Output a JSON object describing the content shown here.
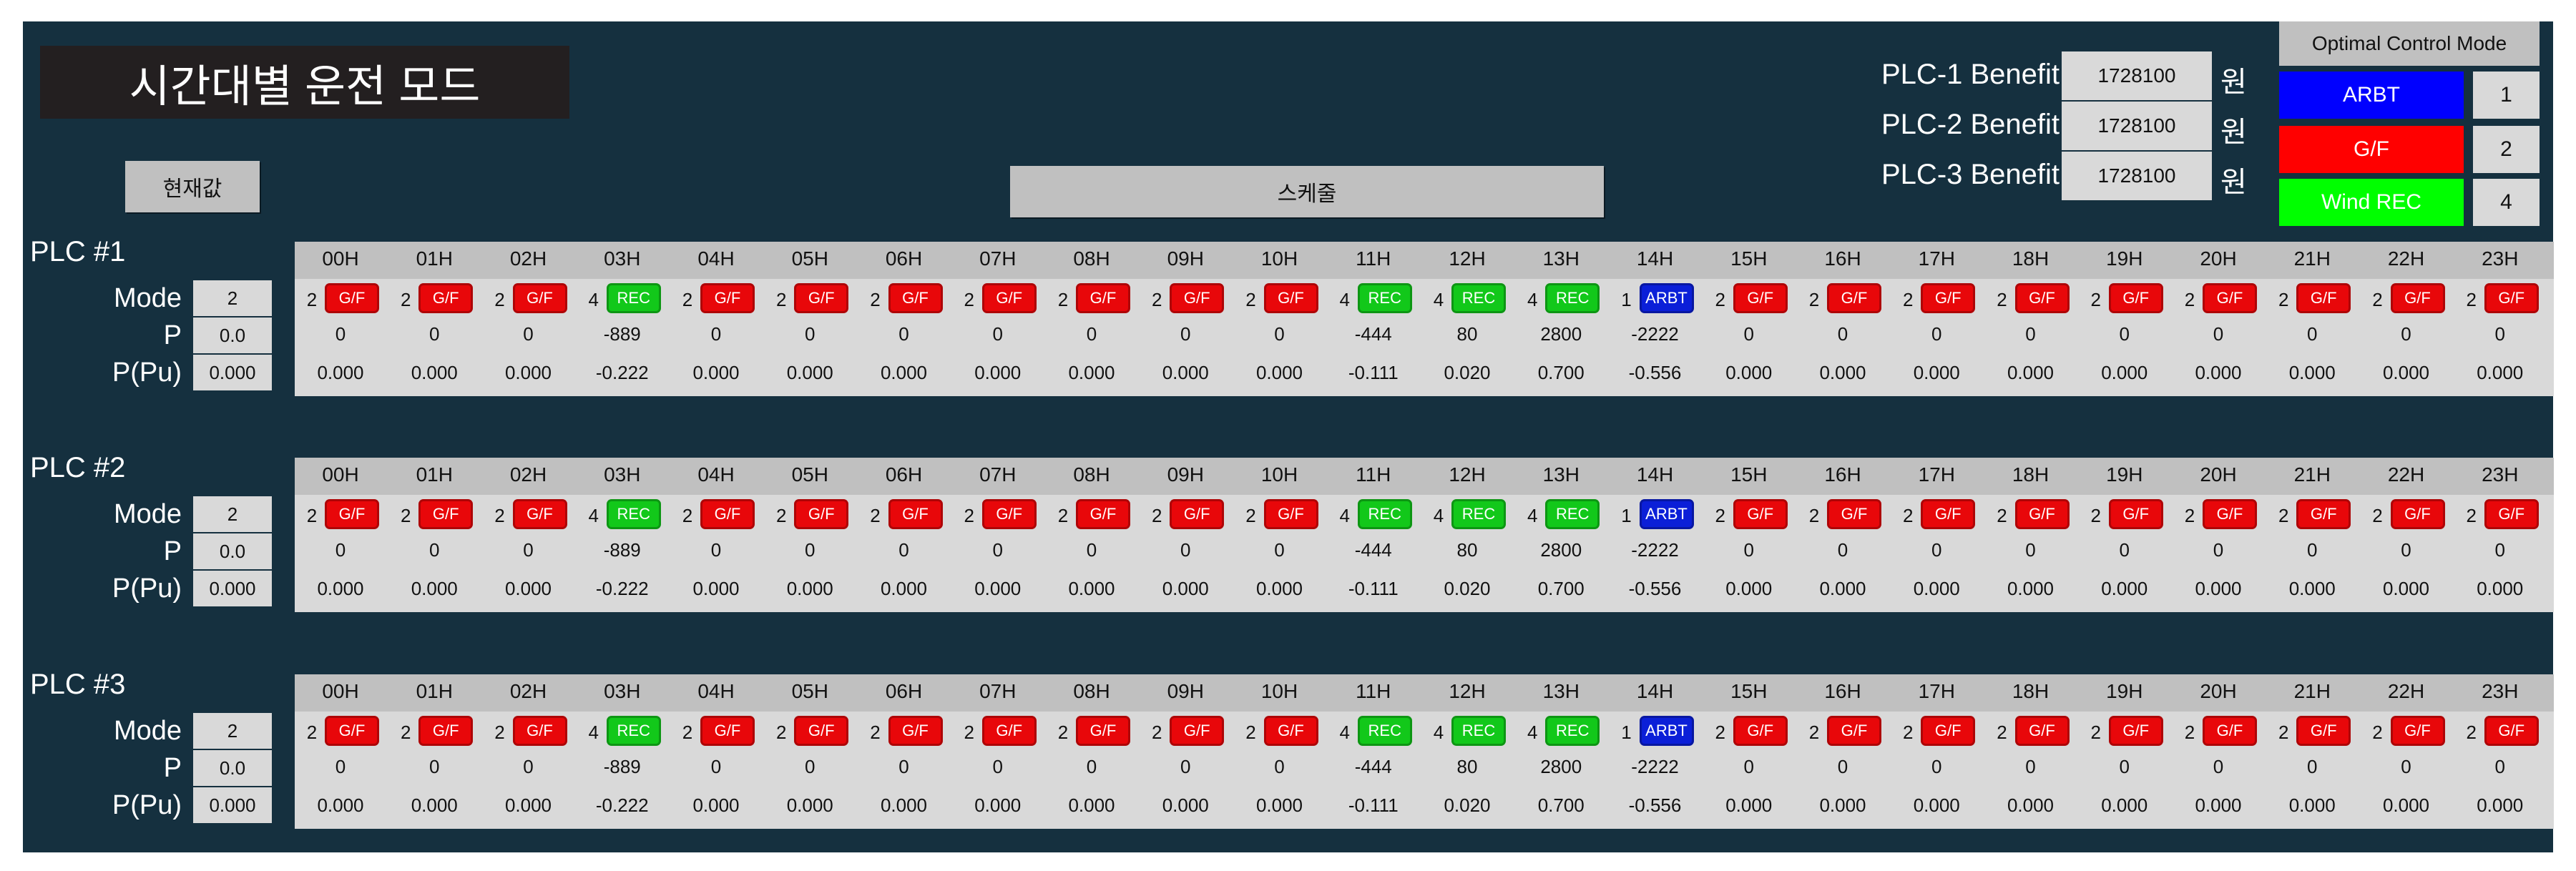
{
  "title": "시간대별 운전 모드",
  "current_label": "현재값",
  "schedule_label": "스케줄",
  "benefits": [
    {
      "label": "PLC-1 Benefit",
      "value": "1728100",
      "unit": "원"
    },
    {
      "label": "PLC-2 Benefit",
      "value": "1728100",
      "unit": "원"
    },
    {
      "label": "PLC-3 Benefit",
      "value": "1728100",
      "unit": "원"
    }
  ],
  "optimal_mode": {
    "title": "Optimal Control Mode",
    "modes": [
      {
        "label": "ARBT",
        "num": "1",
        "color": "#0000ff"
      },
      {
        "label": "G/F",
        "num": "2",
        "color": "#ff0000"
      },
      {
        "label": "Wind REC",
        "num": "4",
        "color": "#00ff00"
      }
    ]
  },
  "colors": {
    "ARBT": "#0b1fd8",
    "G/F": "#e8070a",
    "REC": "#12c81a",
    "ARBT_PLC1": "#0b1fd8"
  },
  "row_labels": {
    "mode": "Mode",
    "p": "P",
    "ppu": "P(Pu)"
  },
  "hours": [
    "00H",
    "01H",
    "02H",
    "03H",
    "04H",
    "05H",
    "06H",
    "07H",
    "08H",
    "09H",
    "10H",
    "11H",
    "12H",
    "13H",
    "14H",
    "15H",
    "16H",
    "17H",
    "18H",
    "19H",
    "20H",
    "21H",
    "22H",
    "23H"
  ],
  "plcs": [
    {
      "name": "PLC #1",
      "current": {
        "mode": "2",
        "p": "0.0",
        "ppu": "0.000"
      },
      "mode_nums": [
        "2",
        "2",
        "2",
        "4",
        "2",
        "2",
        "2",
        "2",
        "2",
        "2",
        "2",
        "4",
        "4",
        "4",
        "1",
        "2",
        "2",
        "2",
        "2",
        "2",
        "2",
        "2",
        "2",
        "2"
      ],
      "mode_labels": [
        "G/F",
        "G/F",
        "G/F",
        "REC",
        "G/F",
        "G/F",
        "G/F",
        "G/F",
        "G/F",
        "G/F",
        "G/F",
        "REC",
        "REC",
        "REC",
        "ARBT",
        "G/F",
        "G/F",
        "G/F",
        "G/F",
        "G/F",
        "G/F",
        "G/F",
        "G/F",
        "G/F"
      ],
      "p": [
        "0",
        "0",
        "0",
        "-889",
        "0",
        "0",
        "0",
        "0",
        "0",
        "0",
        "0",
        "-444",
        "80",
        "2800",
        "-2222",
        "0",
        "0",
        "0",
        "0",
        "0",
        "0",
        "0",
        "0",
        "0"
      ],
      "ppu": [
        "0.000",
        "0.000",
        "0.000",
        "-0.222",
        "0.000",
        "0.000",
        "0.000",
        "0.000",
        "0.000",
        "0.000",
        "0.000",
        "-0.111",
        "0.020",
        "0.700",
        "-0.556",
        "0.000",
        "0.000",
        "0.000",
        "0.000",
        "0.000",
        "0.000",
        "0.000",
        "0.000",
        "0.000"
      ]
    },
    {
      "name": "PLC #2",
      "current": {
        "mode": "2",
        "p": "0.0",
        "ppu": "0.000"
      },
      "mode_nums": [
        "2",
        "2",
        "2",
        "4",
        "2",
        "2",
        "2",
        "2",
        "2",
        "2",
        "2",
        "4",
        "4",
        "4",
        "1",
        "2",
        "2",
        "2",
        "2",
        "2",
        "2",
        "2",
        "2",
        "2"
      ],
      "mode_labels": [
        "G/F",
        "G/F",
        "G/F",
        "REC",
        "G/F",
        "G/F",
        "G/F",
        "G/F",
        "G/F",
        "G/F",
        "G/F",
        "REC",
        "REC",
        "REC",
        "ARBT",
        "G/F",
        "G/F",
        "G/F",
        "G/F",
        "G/F",
        "G/F",
        "G/F",
        "G/F",
        "G/F"
      ],
      "p": [
        "0",
        "0",
        "0",
        "-889",
        "0",
        "0",
        "0",
        "0",
        "0",
        "0",
        "0",
        "-444",
        "80",
        "2800",
        "-2222",
        "0",
        "0",
        "0",
        "0",
        "0",
        "0",
        "0",
        "0",
        "0"
      ],
      "ppu": [
        "0.000",
        "0.000",
        "0.000",
        "-0.222",
        "0.000",
        "0.000",
        "0.000",
        "0.000",
        "0.000",
        "0.000",
        "0.000",
        "-0.111",
        "0.020",
        "0.700",
        "-0.556",
        "0.000",
        "0.000",
        "0.000",
        "0.000",
        "0.000",
        "0.000",
        "0.000",
        "0.000",
        "0.000"
      ]
    },
    {
      "name": "PLC #3",
      "current": {
        "mode": "2",
        "p": "0.0",
        "ppu": "0.000"
      },
      "mode_nums": [
        "2",
        "2",
        "2",
        "4",
        "2",
        "2",
        "2",
        "2",
        "2",
        "2",
        "2",
        "4",
        "4",
        "4",
        "1",
        "2",
        "2",
        "2",
        "2",
        "2",
        "2",
        "2",
        "2",
        "2"
      ],
      "mode_labels": [
        "G/F",
        "G/F",
        "G/F",
        "REC",
        "G/F",
        "G/F",
        "G/F",
        "G/F",
        "G/F",
        "G/F",
        "G/F",
        "REC",
        "REC",
        "REC",
        "ARBT",
        "G/F",
        "G/F",
        "G/F",
        "G/F",
        "G/F",
        "G/F",
        "G/F",
        "G/F",
        "G/F"
      ],
      "p": [
        "0",
        "0",
        "0",
        "-889",
        "0",
        "0",
        "0",
        "0",
        "0",
        "0",
        "0",
        "-444",
        "80",
        "2800",
        "-2222",
        "0",
        "0",
        "0",
        "0",
        "0",
        "0",
        "0",
        "0",
        "0"
      ],
      "ppu": [
        "0.000",
        "0.000",
        "0.000",
        "-0.222",
        "0.000",
        "0.000",
        "0.000",
        "0.000",
        "0.000",
        "0.000",
        "0.000",
        "-0.111",
        "0.020",
        "0.700",
        "-0.556",
        "0.000",
        "0.000",
        "0.000",
        "0.000",
        "0.000",
        "0.000",
        "0.000",
        "0.000",
        "0.000"
      ]
    }
  ]
}
